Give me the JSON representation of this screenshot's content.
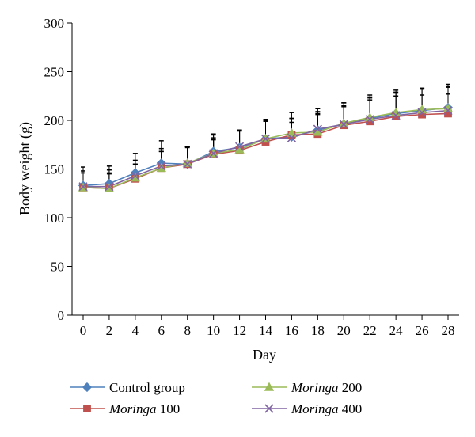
{
  "chart_data": {
    "type": "line",
    "title": "",
    "xlabel": "Day",
    "ylabel": "Body weight (g)",
    "x": [
      0,
      2,
      4,
      6,
      8,
      10,
      12,
      14,
      16,
      18,
      20,
      22,
      24,
      26,
      28
    ],
    "x_ticks": [
      "0",
      "2",
      "4",
      "6",
      "8",
      "10",
      "12",
      "14",
      "16",
      "18",
      "20",
      "22",
      "24",
      "26",
      "28"
    ],
    "y_ticks": [
      "0",
      "50",
      "100",
      "150",
      "200",
      "250",
      "300"
    ],
    "ylim": [
      0,
      300
    ],
    "grid": false,
    "legend_position": "bottom",
    "series": [
      {
        "name": "Control group",
        "legend_main": "Control group",
        "legend_suffix": "",
        "color": "#4F81BD",
        "marker": "diamond",
        "values": [
          133,
          135,
          146,
          156,
          155,
          168,
          172,
          181,
          183,
          190,
          196,
          202,
          207,
          210,
          213
        ],
        "errors": [
          19,
          18,
          20,
          23,
          18,
          18,
          18,
          20,
          25,
          22,
          22,
          24,
          24,
          23,
          24
        ]
      },
      {
        "name": "Moringa 100",
        "legend_main": "Moringa",
        "legend_suffix": " 100",
        "color": "#C0504D",
        "marker": "square",
        "values": [
          131,
          130,
          140,
          151,
          155,
          165,
          169,
          178,
          185,
          186,
          195,
          199,
          204,
          206,
          207
        ],
        "errors": [
          15,
          15,
          15,
          17,
          18,
          15,
          21,
          21,
          17,
          20,
          20,
          22,
          21,
          20,
          20
        ]
      },
      {
        "name": "Moringa 200",
        "legend_main": "Moringa",
        "legend_suffix": " 200",
        "color": "#9BBB59",
        "marker": "triangle",
        "values": [
          131,
          130,
          141,
          151,
          156,
          166,
          170,
          181,
          187,
          188,
          197,
          203,
          208,
          211,
          212
        ],
        "errors": [
          17,
          16,
          18,
          20,
          17,
          16,
          19,
          19,
          15,
          19,
          21,
          21,
          21,
          22,
          22
        ]
      },
      {
        "name": "Moringa 400",
        "legend_main": "Moringa",
        "legend_suffix": " 400",
        "color": "#8064A2",
        "marker": "x",
        "values": [
          132,
          132,
          143,
          153,
          155,
          166,
          173,
          181,
          182,
          191,
          196,
          201,
          205,
          208,
          210
        ],
        "errors": [
          14,
          17,
          12,
          15,
          17,
          19,
          17,
          20,
          16,
          18,
          18,
          22,
          23,
          24,
          25
        ]
      }
    ]
  }
}
